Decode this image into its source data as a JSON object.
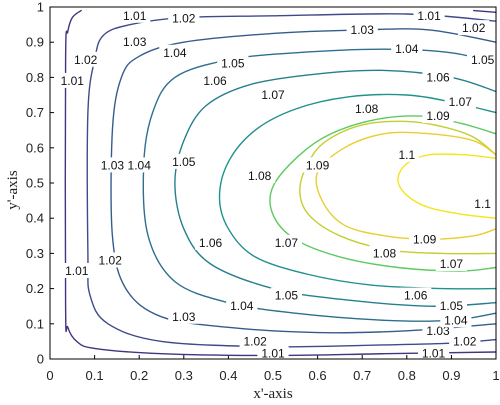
{
  "chart_data": {
    "type": "contour",
    "title": "",
    "xlabel": "x'-axis",
    "ylabel": "y'-axis",
    "xlim": [
      0,
      1
    ],
    "ylim": [
      0,
      1
    ],
    "x_ticks": [
      "0",
      "0.1",
      "0.2",
      "0.3",
      "0.4",
      "0.5",
      "0.6",
      "0.7",
      "0.8",
      "0.9",
      "1"
    ],
    "y_ticks": [
      "0",
      "0.1",
      "0.2",
      "0.3",
      "0.4",
      "0.5",
      "0.6",
      "0.7",
      "0.8",
      "0.9",
      "1"
    ],
    "grid": false,
    "colormap": "viridis",
    "levels": [
      {
        "value": "1.01",
        "color": "#46327e",
        "path": [
          [
            0.07,
            0.99
          ],
          [
            0.05,
            0.97
          ],
          [
            0.04,
            0.93
          ],
          [
            0.035,
            0.85
          ],
          [
            0.035,
            0.15
          ],
          [
            0.04,
            0.09
          ],
          [
            0.06,
            0.05
          ],
          [
            0.1,
            0.03
          ],
          [
            0.25,
            0.015
          ],
          [
            0.5,
            0.01
          ],
          [
            0.75,
            0.015
          ],
          [
            1.0,
            0.02
          ]
        ],
        "path2": [
          [
            0.95,
            0.99
          ],
          [
            1.0,
            0.985
          ]
        ],
        "labels": [
          [
            0.19,
            0.975
          ],
          [
            0.85,
            0.975
          ],
          [
            0.05,
            0.79
          ],
          [
            0.06,
            0.25
          ],
          [
            0.5,
            0.015
          ],
          [
            0.86,
            0.015
          ]
        ]
      },
      {
        "value": "1.02",
        "color": "#3f4a8a",
        "path": [
          [
            1.0,
            0.96
          ],
          [
            0.8,
            0.98
          ],
          [
            0.5,
            0.975
          ],
          [
            0.3,
            0.97
          ],
          [
            0.18,
            0.95
          ],
          [
            0.12,
            0.92
          ],
          [
            0.1,
            0.85
          ],
          [
            0.085,
            0.7
          ],
          [
            0.085,
            0.3
          ],
          [
            0.09,
            0.18
          ],
          [
            0.13,
            0.1
          ],
          [
            0.25,
            0.05
          ],
          [
            0.5,
            0.035
          ],
          [
            0.75,
            0.04
          ],
          [
            0.9,
            0.045
          ],
          [
            1.0,
            0.055
          ]
        ],
        "labels": [
          [
            0.3,
            0.967
          ],
          [
            0.95,
            0.94
          ],
          [
            0.08,
            0.85
          ],
          [
            0.135,
            0.28
          ],
          [
            0.46,
            0.05
          ],
          [
            0.93,
            0.05
          ]
        ]
      },
      {
        "value": "1.03",
        "color": "#365c8d",
        "path": [
          [
            1.0,
            0.9
          ],
          [
            0.85,
            0.935
          ],
          [
            0.7,
            0.935
          ],
          [
            0.5,
            0.925
          ],
          [
            0.3,
            0.9
          ],
          [
            0.2,
            0.86
          ],
          [
            0.16,
            0.8
          ],
          [
            0.14,
            0.65
          ],
          [
            0.14,
            0.35
          ],
          [
            0.17,
            0.2
          ],
          [
            0.25,
            0.12
          ],
          [
            0.4,
            0.09
          ],
          [
            0.6,
            0.075
          ],
          [
            0.8,
            0.08
          ],
          [
            1.0,
            0.1
          ]
        ],
        "labels": [
          [
            0.19,
            0.9
          ],
          [
            0.7,
            0.935
          ],
          [
            0.14,
            0.55
          ],
          [
            0.3,
            0.12
          ],
          [
            0.87,
            0.08
          ]
        ]
      },
      {
        "value": "1.04",
        "color": "#2e6f8e",
        "path": [
          [
            1.0,
            0.84
          ],
          [
            0.9,
            0.87
          ],
          [
            0.75,
            0.88
          ],
          [
            0.55,
            0.87
          ],
          [
            0.4,
            0.85
          ],
          [
            0.28,
            0.8
          ],
          [
            0.23,
            0.7
          ],
          [
            0.21,
            0.55
          ],
          [
            0.22,
            0.35
          ],
          [
            0.28,
            0.22
          ],
          [
            0.4,
            0.16
          ],
          [
            0.55,
            0.13
          ],
          [
            0.75,
            0.11
          ],
          [
            0.9,
            0.11
          ],
          [
            1.0,
            0.13
          ]
        ],
        "labels": [
          [
            0.28,
            0.87
          ],
          [
            0.8,
            0.88
          ],
          [
            0.2,
            0.55
          ],
          [
            0.43,
            0.15
          ],
          [
            0.91,
            0.11
          ]
        ]
      },
      {
        "value": "1.05",
        "color": "#277f8e",
        "path": [
          [
            1.0,
            0.76
          ],
          [
            0.9,
            0.8
          ],
          [
            0.75,
            0.82
          ],
          [
            0.6,
            0.81
          ],
          [
            0.45,
            0.78
          ],
          [
            0.35,
            0.72
          ],
          [
            0.3,
            0.62
          ],
          [
            0.28,
            0.5
          ],
          [
            0.3,
            0.37
          ],
          [
            0.36,
            0.27
          ],
          [
            0.5,
            0.2
          ],
          [
            0.65,
            0.17
          ],
          [
            0.85,
            0.15
          ],
          [
            1.0,
            0.16
          ]
        ],
        "labels": [
          [
            0.41,
            0.84
          ],
          [
            0.97,
            0.85
          ],
          [
            0.3,
            0.56
          ],
          [
            0.53,
            0.18
          ],
          [
            0.9,
            0.15
          ]
        ]
      },
      {
        "value": "1.06",
        "color": "#21918c",
        "path": [
          [
            1.0,
            0.7
          ],
          [
            0.9,
            0.73
          ],
          [
            0.8,
            0.75
          ],
          [
            0.67,
            0.745
          ],
          [
            0.55,
            0.71
          ],
          [
            0.46,
            0.65
          ],
          [
            0.4,
            0.56
          ],
          [
            0.38,
            0.46
          ],
          [
            0.4,
            0.37
          ],
          [
            0.46,
            0.29
          ],
          [
            0.58,
            0.24
          ],
          [
            0.72,
            0.21
          ],
          [
            0.88,
            0.2
          ],
          [
            1.0,
            0.2
          ]
        ],
        "labels": [
          [
            0.37,
            0.79
          ],
          [
            0.87,
            0.8
          ],
          [
            0.36,
            0.33
          ],
          [
            0.82,
            0.18
          ]
        ]
      },
      {
        "value": "1.07",
        "color": "#5ec962",
        "path": [
          [
            1.0,
            0.64
          ],
          [
            0.92,
            0.67
          ],
          [
            0.83,
            0.69
          ],
          [
            0.73,
            0.68
          ],
          [
            0.63,
            0.64
          ],
          [
            0.56,
            0.58
          ],
          [
            0.5,
            0.49
          ],
          [
            0.5,
            0.41
          ],
          [
            0.55,
            0.34
          ],
          [
            0.65,
            0.29
          ],
          [
            0.78,
            0.26
          ],
          [
            0.92,
            0.25
          ],
          [
            1.0,
            0.26
          ]
        ],
        "labels": [
          [
            0.5,
            0.75
          ],
          [
            0.92,
            0.73
          ],
          [
            0.53,
            0.33
          ],
          [
            0.9,
            0.27
          ]
        ]
      },
      {
        "value": "1.08",
        "color": "#c2cf30",
        "path": [
          [
            1.0,
            0.58
          ],
          [
            0.95,
            0.63
          ],
          [
            0.88,
            0.66
          ],
          [
            0.8,
            0.675
          ],
          [
            0.7,
            0.665
          ],
          [
            0.62,
            0.62
          ],
          [
            0.58,
            0.56
          ],
          [
            0.56,
            0.48
          ],
          [
            0.58,
            0.41
          ],
          [
            0.65,
            0.35
          ],
          [
            0.76,
            0.31
          ],
          [
            0.88,
            0.3
          ],
          [
            1.0,
            0.3
          ]
        ],
        "labels": [
          [
            0.71,
            0.71
          ],
          [
            0.47,
            0.52
          ],
          [
            0.75,
            0.3
          ]
        ]
      },
      {
        "value": "1.09",
        "color": "#e8cf2f",
        "path": [
          [
            1.0,
            0.58
          ],
          [
            0.95,
            0.62
          ],
          [
            0.85,
            0.64
          ],
          [
            0.75,
            0.64
          ],
          [
            0.66,
            0.6
          ],
          [
            0.6,
            0.53
          ],
          [
            0.61,
            0.45
          ],
          [
            0.66,
            0.38
          ],
          [
            0.75,
            0.35
          ],
          [
            0.85,
            0.34
          ],
          [
            0.95,
            0.35
          ],
          [
            1.0,
            0.37
          ]
        ],
        "labels": [
          [
            0.87,
            0.69
          ],
          [
            0.6,
            0.55
          ],
          [
            0.84,
            0.34
          ]
        ]
      },
      {
        "value": "1.1",
        "color": "#f4e61e",
        "path": [
          [
            1.0,
            0.4
          ],
          [
            0.93,
            0.41
          ],
          [
            0.85,
            0.43
          ],
          [
            0.8,
            0.465
          ],
          [
            0.78,
            0.51
          ],
          [
            0.8,
            0.555
          ],
          [
            0.85,
            0.58
          ],
          [
            0.93,
            0.58
          ],
          [
            1.0,
            0.57
          ]
        ],
        "labels": [
          [
            0.8,
            0.58
          ],
          [
            0.97,
            0.44
          ]
        ]
      }
    ]
  }
}
